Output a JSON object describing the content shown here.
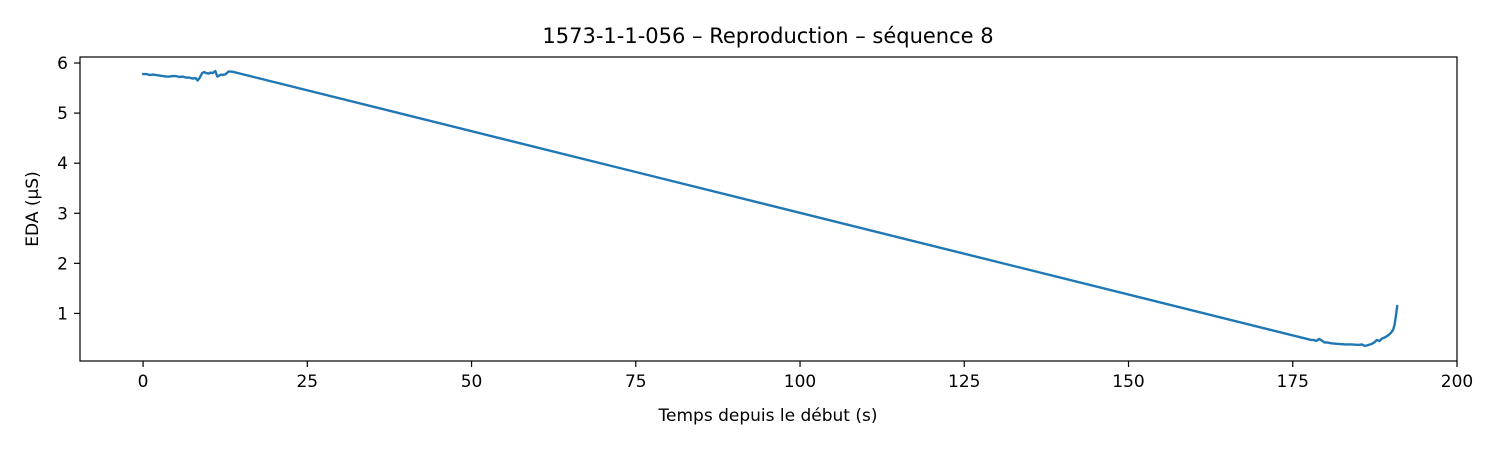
{
  "chart_data": {
    "type": "line",
    "title": "1573-1-1-056 – Reproduction – séquence 8",
    "xlabel": "Temps depuis le début (s)",
    "ylabel": "EDA (µS)",
    "xlim": [
      -9.6,
      200
    ],
    "ylim": [
      0.05,
      6.12
    ],
    "xticks": [
      0,
      25,
      50,
      75,
      100,
      125,
      150,
      175,
      200
    ],
    "xtick_labels": [
      "0",
      "25",
      "50",
      "75",
      "100",
      "125",
      "150",
      "175",
      "200"
    ],
    "yticks": [
      1,
      2,
      3,
      4,
      5,
      6
    ],
    "ytick_labels": [
      "1",
      "2",
      "3",
      "4",
      "5",
      "6"
    ],
    "grid": false,
    "legend": "none",
    "series": [
      {
        "color": "#1f77b4",
        "x": [
          0,
          0.5,
          1,
          1.5,
          2,
          2.5,
          3,
          3.5,
          4,
          4.5,
          5,
          5.5,
          6,
          6.5,
          7,
          7.5,
          8,
          8.3,
          8.6,
          9,
          9.3,
          9.6,
          10,
          10.3,
          10.6,
          11,
          11.3,
          11.6,
          11.9,
          12.2,
          12.6,
          13,
          13.4,
          13.8,
          177.8,
          178.2,
          178.6,
          179,
          179.4,
          179.8,
          180.2,
          181,
          182,
          183,
          184,
          185,
          185.5,
          186,
          186.5,
          187,
          187.4,
          187.8,
          188.2,
          188.6,
          189,
          189.5,
          190,
          190.3,
          190.5,
          190.7,
          190.9
        ],
        "y": [
          5.78,
          5.78,
          5.76,
          5.77,
          5.76,
          5.75,
          5.74,
          5.73,
          5.73,
          5.74,
          5.74,
          5.72,
          5.73,
          5.71,
          5.71,
          5.69,
          5.7,
          5.65,
          5.7,
          5.8,
          5.82,
          5.8,
          5.79,
          5.81,
          5.8,
          5.84,
          5.73,
          5.75,
          5.77,
          5.76,
          5.78,
          5.83,
          5.83,
          5.82,
          0.47,
          0.47,
          0.45,
          0.49,
          0.46,
          0.42,
          0.42,
          0.4,
          0.39,
          0.38,
          0.38,
          0.37,
          0.38,
          0.35,
          0.37,
          0.39,
          0.42,
          0.47,
          0.45,
          0.5,
          0.52,
          0.56,
          0.62,
          0.68,
          0.78,
          0.95,
          1.15
        ]
      }
    ]
  }
}
